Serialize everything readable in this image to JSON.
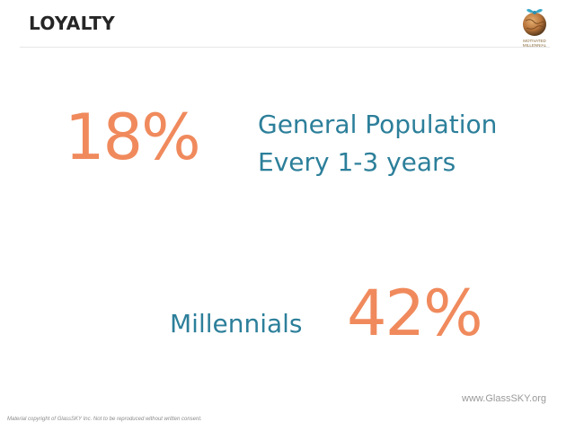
{
  "slide": {
    "title": "LOYALTY",
    "logo": {
      "line1": "MOTIVATED",
      "line2": "MILLENNIAL",
      "icon": "globe-with-bow-icon"
    },
    "general": {
      "percent": "18%",
      "label": "General Population",
      "frequency": "Every 1-3 years"
    },
    "millennials": {
      "label": "Millennials",
      "percent": "42%"
    },
    "website": "www.GlassSKY.org",
    "copyright": "Material copyright of GlassSKY Inc. Not to be reproduced without written consent."
  },
  "colors": {
    "accent_orange": "#f08a5d",
    "accent_blue": "#2c7f9a",
    "title": "#262626"
  }
}
